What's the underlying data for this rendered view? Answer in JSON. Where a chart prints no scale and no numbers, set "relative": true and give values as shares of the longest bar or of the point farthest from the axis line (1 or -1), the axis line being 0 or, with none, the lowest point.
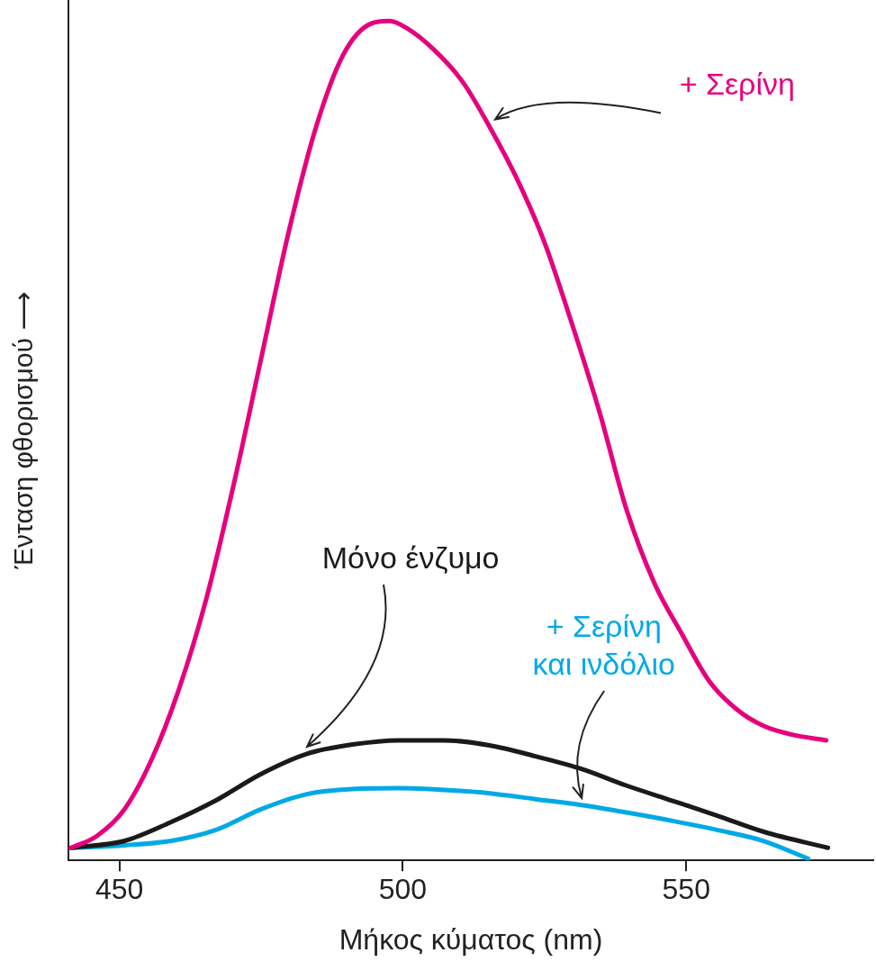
{
  "chart_data": {
    "type": "line",
    "relative": true,
    "xlabel": "Μήκος κύματος (nm)",
    "ylabel": "Ένταση φθορισμού ⟶",
    "xlim": [
      441,
      583
    ],
    "xticks": [
      450,
      500,
      550
    ],
    "legend": false,
    "grid": false,
    "marker": "none",
    "line_style": "solid",
    "series": [
      {
        "name": "+ Σερίνη",
        "color": "#e5007e",
        "x": [
          441.5,
          446.0,
          450.8,
          455.6,
          460.5,
          465.3,
          470.2,
          475.0,
          479.8,
          484.7,
          489.5,
          494.4,
          497.6,
          500.8,
          505.6,
          510.5,
          515.3,
          520.2,
          525.0,
          529.8,
          534.7,
          539.5,
          544.4,
          549.2,
          554.0,
          558.9,
          563.7,
          568.5,
          574.7
        ],
        "values": [
          0.015,
          0.029,
          0.06,
          0.119,
          0.204,
          0.311,
          0.449,
          0.598,
          0.747,
          0.874,
          0.96,
          0.997,
          1.0,
          0.991,
          0.965,
          0.928,
          0.874,
          0.811,
          0.736,
          0.64,
          0.534,
          0.417,
          0.33,
          0.27,
          0.214,
          0.18,
          0.16,
          0.15,
          0.143
        ]
      },
      {
        "name": "Μόνο ένζυμο",
        "color": "#1a1a1a",
        "x": [
          441.5,
          450.8,
          458.9,
          466.9,
          475.0,
          483.1,
          491.1,
          499.2,
          507.3,
          515.3,
          523.4,
          531.5,
          539.5,
          547.6,
          555.6,
          563.7,
          575.0
        ],
        "values": [
          0.015,
          0.023,
          0.045,
          0.071,
          0.103,
          0.127,
          0.138,
          0.143,
          0.143,
          0.137,
          0.124,
          0.109,
          0.089,
          0.071,
          0.053,
          0.034,
          0.015
        ]
      },
      {
        "name": "+ Σερίνη και ινδόλιο",
        "color": "#00a9e6",
        "x": [
          441.5,
          450.8,
          458.9,
          466.9,
          475.0,
          483.1,
          491.1,
          499.2,
          507.3,
          515.3,
          523.4,
          531.5,
          539.5,
          547.6,
          555.6,
          563.7,
          571.5
        ],
        "values": [
          0.015,
          0.018,
          0.023,
          0.036,
          0.061,
          0.079,
          0.085,
          0.086,
          0.084,
          0.08,
          0.073,
          0.066,
          0.057,
          0.047,
          0.036,
          0.023,
          0.002
        ]
      }
    ]
  }
}
